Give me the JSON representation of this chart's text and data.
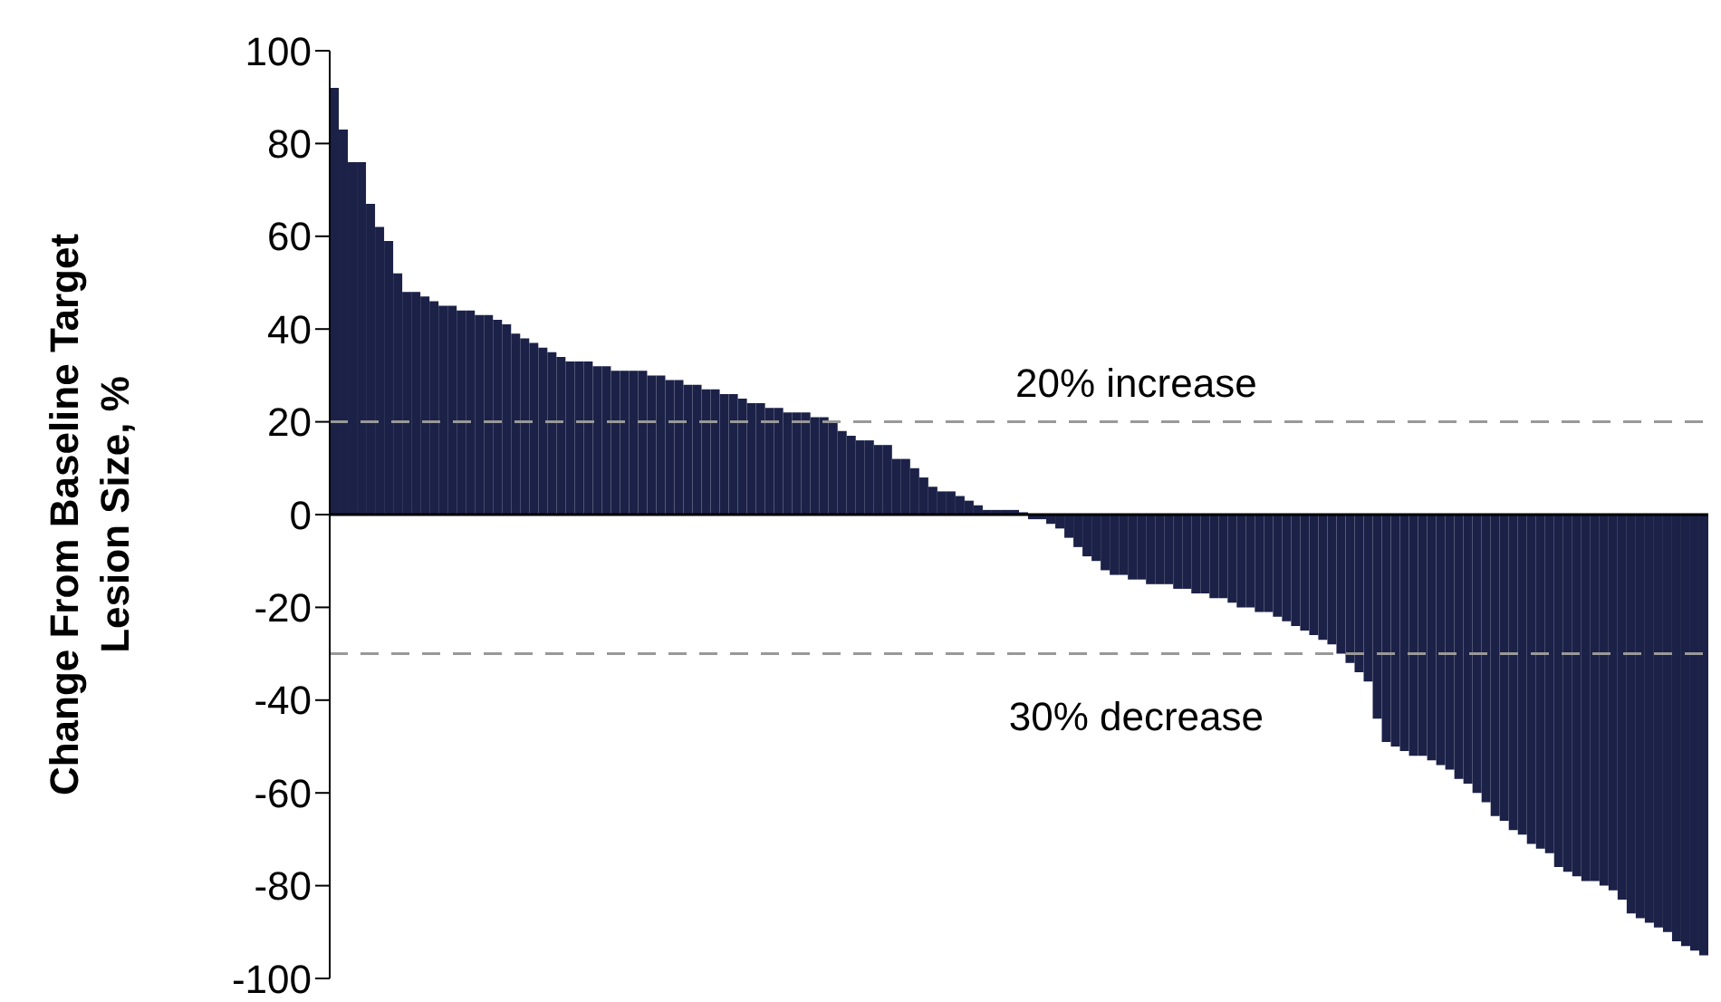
{
  "chart_data": {
    "type": "bar",
    "ylabel": "Change From Baseline Target Lesion Size, %",
    "categories": [
      null,
      null,
      null,
      null,
      null,
      null,
      null,
      null,
      null,
      null,
      null,
      null,
      null,
      null,
      null,
      null,
      null,
      null,
      null,
      null,
      null,
      null,
      null,
      null,
      null,
      null,
      null,
      null,
      null,
      null,
      null,
      null,
      null,
      null,
      null,
      null,
      null,
      null,
      null,
      null,
      null,
      null,
      null,
      null,
      null,
      null,
      null,
      null,
      null,
      null,
      null,
      null,
      null,
      null,
      null,
      null,
      null,
      null,
      null,
      null,
      null,
      null,
      null,
      null,
      null,
      null,
      null,
      null,
      null,
      null,
      null,
      null,
      null,
      null,
      null,
      null,
      null,
      null,
      null,
      null,
      null,
      null,
      null,
      null,
      null,
      null,
      null,
      null,
      null,
      null,
      null,
      null,
      null,
      null,
      null,
      null,
      null,
      null,
      null,
      null,
      null,
      null,
      null,
      null,
      null,
      null,
      null,
      null,
      null,
      null,
      null,
      null,
      null,
      null,
      null,
      null,
      null,
      null,
      null,
      null,
      null,
      null,
      null,
      null,
      null,
      null,
      null,
      null,
      null,
      null,
      null,
      null,
      null,
      null,
      null,
      null,
      null,
      null,
      null,
      null,
      null,
      null,
      null,
      null,
      null,
      null,
      null,
      null,
      null,
      null,
      null,
      null
    ],
    "values": [
      92,
      83,
      76,
      76,
      67,
      62,
      59,
      52,
      48,
      48,
      47,
      46,
      45,
      45,
      44,
      44,
      43,
      43,
      42,
      41,
      39,
      38,
      37,
      36,
      35,
      34,
      33,
      33,
      33,
      32,
      32,
      31,
      31,
      31,
      31,
      30,
      30,
      29,
      29,
      28,
      28,
      27,
      27,
      26,
      26,
      25,
      24,
      24,
      23,
      23,
      22,
      22,
      22,
      21,
      21,
      20,
      18,
      17,
      16,
      16,
      15,
      15,
      12,
      12,
      10,
      8,
      6,
      5,
      5,
      4,
      3,
      2,
      1,
      1,
      1,
      1,
      0.5,
      -1,
      -1,
      -2,
      -3,
      -5,
      -7,
      -9,
      -10,
      -12,
      -13,
      -13,
      -14,
      -14,
      -15,
      -15,
      -15,
      -16,
      -16,
      -17,
      -17,
      -18,
      -18,
      -19,
      -20,
      -20,
      -21,
      -21,
      -22,
      -23,
      -24,
      -25,
      -26,
      -27,
      -28,
      -30,
      -32,
      -34,
      -36,
      -44,
      -49,
      -50,
      -51,
      -52,
      -52,
      -53,
      -54,
      -55,
      -57,
      -58,
      -60,
      -62,
      -65,
      -66,
      -68,
      -69,
      -71,
      -72,
      -73,
      -76,
      -77,
      -78,
      -79,
      -79,
      -80,
      -81,
      -83,
      -86,
      -87,
      -88,
      -89,
      -90,
      -92,
      -93,
      -94,
      -95
    ],
    "color": "#1b2147",
    "ylim": [
      -100,
      100
    ],
    "yticks": [
      -100,
      -80,
      -60,
      -40,
      -20,
      0,
      20,
      40,
      60,
      80,
      100
    ],
    "ref_lines": [
      {
        "axis": "y",
        "value": 20,
        "label": "20% increase",
        "color": "#999999",
        "line_style": "dashed"
      },
      {
        "axis": "y",
        "value": -30,
        "label": "30% decrease",
        "color": "#999999",
        "line_style": "dashed"
      }
    ],
    "grid": false,
    "tick_labels": "y"
  }
}
